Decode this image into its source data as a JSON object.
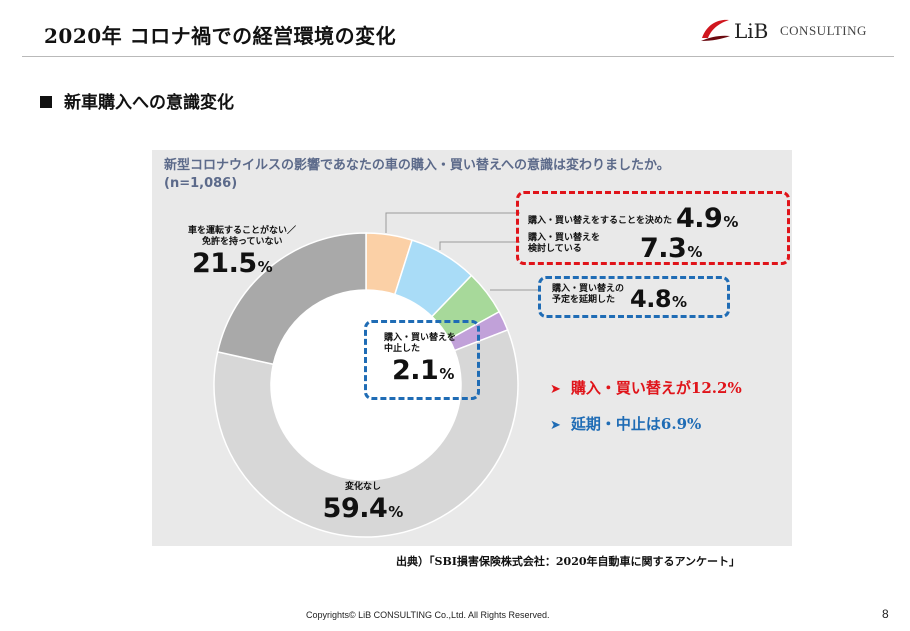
{
  "header": {
    "title": "2020年 コロナ禍での経営環境の変化"
  },
  "logo": {
    "main": "LiB",
    "sub": "CONSULTING"
  },
  "section": {
    "title": "新車購入への意識変化"
  },
  "chart_data": {
    "type": "pie",
    "title": "新型コロナウイルスの影響であなたの車の購入・買い替えへの意識は変わりましたか。",
    "subtitle": "(n=1,086)",
    "unit": "%",
    "slices": [
      {
        "label_lines": [
          "購入・買い替えをすることを決めた"
        ],
        "value": 4.9,
        "value_text": "4.9",
        "color": "#fbd0a6"
      },
      {
        "label_lines": [
          "購入・買い替えを",
          "検討している"
        ],
        "value": 7.3,
        "value_text": "7.3",
        "color": "#a9dcf7"
      },
      {
        "label_lines": [
          "購入・買い替えの",
          "予定を延期した"
        ],
        "value": 4.8,
        "value_text": "4.8",
        "color": "#a7d99a"
      },
      {
        "label_lines": [
          "購入・買い替えを",
          "中止した"
        ],
        "value": 2.1,
        "value_text": "2.1",
        "color": "#c1a1d9"
      },
      {
        "label_lines": [
          "変化なし"
        ],
        "value": 59.4,
        "value_text": "59.4",
        "color": "#d7d7d7"
      },
      {
        "label_lines": [
          "車を運転することがない／",
          "免許を持っていない"
        ],
        "value": 21.5,
        "value_text": "21.5",
        "color": "#a9a9a9"
      }
    ]
  },
  "callouts": [
    {
      "text": "購入・買い替えが12.2%",
      "color": "#e0141a"
    },
    {
      "text": "延期・中止は6.9%",
      "color": "#1f6cb5"
    }
  ],
  "source": "出典）「SBI損害保険株式会社：2020年自動車に関するアンケート」",
  "footer": {
    "copyright": "Copyrights© LiB CONSULTING Co.,Ltd.  All Rights Reserved.",
    "page": "8"
  }
}
